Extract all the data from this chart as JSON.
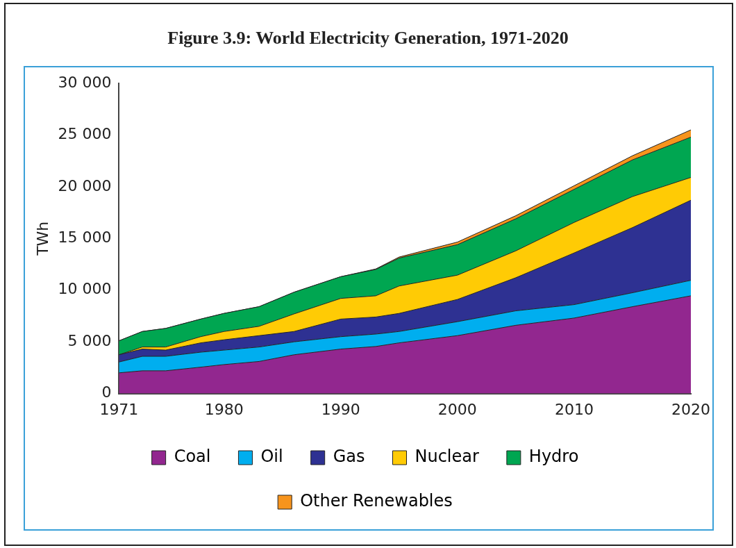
{
  "chart_data": {
    "type": "area",
    "title": "Figure 3.9: World Electricity Generation, 1971-2020",
    "ylabel": "TWh",
    "stacked": true,
    "x": [
      1971,
      1973,
      1975,
      1978,
      1980,
      1983,
      1986,
      1990,
      1993,
      1995,
      2000,
      2005,
      2010,
      2015,
      2020
    ],
    "series": [
      {
        "name": "Coal",
        "color": "#92278f",
        "values": [
          2000,
          2200,
          2200,
          2550,
          2800,
          3100,
          3750,
          4300,
          4550,
          4900,
          5600,
          6600,
          7300,
          8400,
          9450
        ]
      },
      {
        "name": "Oil",
        "color": "#00aeef",
        "values": [
          1050,
          1400,
          1400,
          1450,
          1400,
          1400,
          1250,
          1200,
          1200,
          1100,
          1350,
          1400,
          1300,
          1350,
          1500
        ]
      },
      {
        "name": "Gas",
        "color": "#2e3192",
        "values": [
          700,
          700,
          600,
          900,
          1000,
          1100,
          1000,
          1700,
          1650,
          1750,
          2150,
          3200,
          5000,
          6300,
          7750
        ]
      },
      {
        "name": "Nuclear",
        "color": "#ffcb05",
        "values": [
          0,
          200,
          300,
          600,
          800,
          900,
          1700,
          2000,
          2050,
          2650,
          2350,
          2600,
          2950,
          3000,
          2200
        ]
      },
      {
        "name": "Hydro",
        "color": "#00a651",
        "values": [
          1350,
          1500,
          1800,
          1700,
          1750,
          1900,
          2100,
          2100,
          2550,
          2700,
          2950,
          3100,
          3200,
          3550,
          3900
        ]
      },
      {
        "name": "Other Renewables",
        "color": "#f7941d",
        "values": [
          0,
          0,
          0,
          0,
          0,
          0,
          0,
          0,
          50,
          100,
          250,
          300,
          350,
          400,
          700
        ]
      }
    ],
    "xlim": [
      1971,
      2020
    ],
    "xticks": [
      1971,
      1980,
      1990,
      2000,
      2010,
      2020
    ],
    "ylim": [
      0,
      30000
    ],
    "yticks": [
      {
        "value": 0,
        "label": "0"
      },
      {
        "value": 5000,
        "label": "5 000"
      },
      {
        "value": 10000,
        "label": "10 000"
      },
      {
        "value": 15000,
        "label": "15 000"
      },
      {
        "value": 20000,
        "label": "20 000"
      },
      {
        "value": 25000,
        "label": "25 000"
      },
      {
        "value": 30000,
        "label": "30 000"
      }
    ],
    "grid": false,
    "legend": "bottom"
  }
}
